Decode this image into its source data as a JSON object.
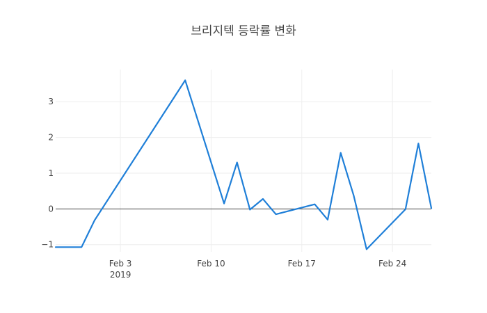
{
  "chart_data": {
    "type": "line",
    "title": "브리지텍 등락률 변화",
    "xlabel": "",
    "ylabel": "",
    "x_axis_type": "date",
    "xlim": [
      "2019-01-29",
      "2019-02-27"
    ],
    "ylim": [
      -1.2,
      3.9
    ],
    "grid": true,
    "legend": "none",
    "x_ticks": [
      {
        "date": "2019-02-03",
        "label": "Feb 3",
        "sublabel": "2019"
      },
      {
        "date": "2019-02-10",
        "label": "Feb 10",
        "sublabel": ""
      },
      {
        "date": "2019-02-17",
        "label": "Feb 17",
        "sublabel": ""
      },
      {
        "date": "2019-02-24",
        "label": "Feb 24",
        "sublabel": ""
      }
    ],
    "y_ticks": [
      {
        "value": -1,
        "label": "−1"
      },
      {
        "value": 0,
        "label": "0"
      },
      {
        "value": 1,
        "label": "1"
      },
      {
        "value": 2,
        "label": "2"
      },
      {
        "value": 3,
        "label": "3"
      }
    ],
    "series": [
      {
        "color": "#1f7fd8",
        "points": [
          {
            "x": "2019-01-29",
            "y": -1.07
          },
          {
            "x": "2019-01-31",
            "y": -1.07
          },
          {
            "x": "2019-02-01",
            "y": -0.32
          },
          {
            "x": "2019-02-08",
            "y": 3.6
          },
          {
            "x": "2019-02-11",
            "y": 0.15
          },
          {
            "x": "2019-02-12",
            "y": 1.3
          },
          {
            "x": "2019-02-13",
            "y": -0.02
          },
          {
            "x": "2019-02-14",
            "y": 0.28
          },
          {
            "x": "2019-02-15",
            "y": -0.15
          },
          {
            "x": "2019-02-18",
            "y": 0.13
          },
          {
            "x": "2019-02-19",
            "y": -0.3
          },
          {
            "x": "2019-02-20",
            "y": 1.57
          },
          {
            "x": "2019-02-21",
            "y": 0.38
          },
          {
            "x": "2019-02-22",
            "y": -1.13
          },
          {
            "x": "2019-02-25",
            "y": -0.01
          },
          {
            "x": "2019-02-26",
            "y": 1.83
          },
          {
            "x": "2019-02-27",
            "y": 0.02
          }
        ]
      }
    ]
  }
}
